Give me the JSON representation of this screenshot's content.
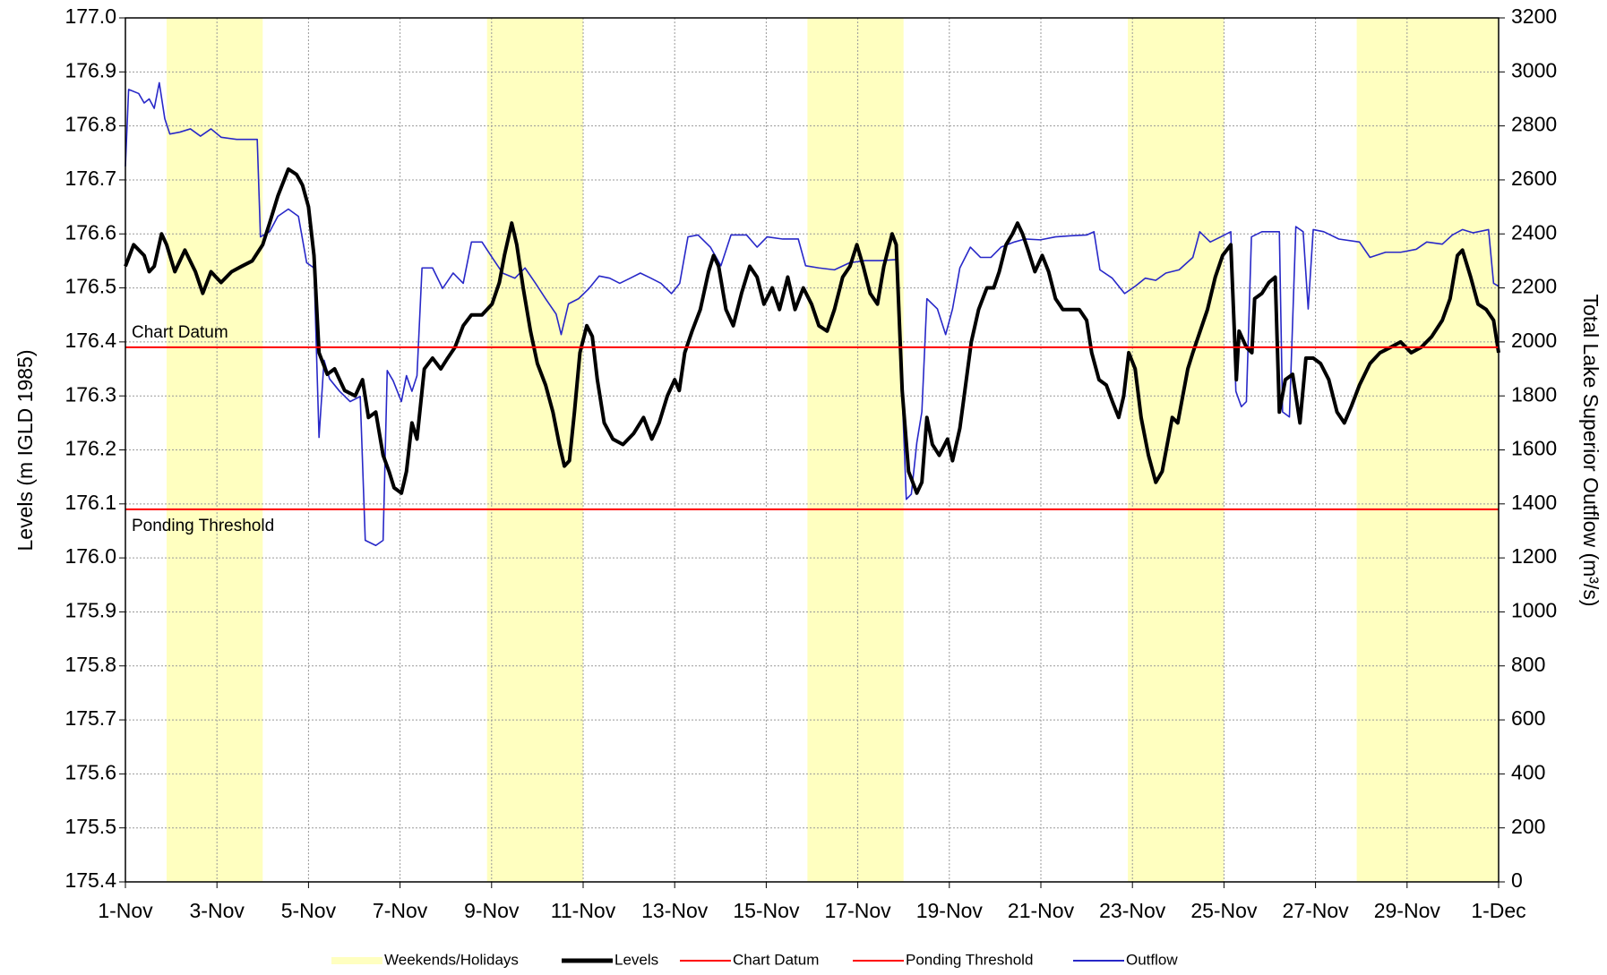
{
  "chart_data": {
    "type": "line",
    "ylabel": "Levels (m IGLD 1985)",
    "y2label": "Total Lake Superior Outflow (m³/s)",
    "xlim": [
      0,
      30
    ],
    "xticks": [
      {
        "value": 0,
        "label": "1-Nov"
      },
      {
        "value": 2,
        "label": "3-Nov"
      },
      {
        "value": 4,
        "label": "5-Nov"
      },
      {
        "value": 6,
        "label": "7-Nov"
      },
      {
        "value": 8,
        "label": "9-Nov"
      },
      {
        "value": 10,
        "label": "11-Nov"
      },
      {
        "value": 12,
        "label": "13-Nov"
      },
      {
        "value": 14,
        "label": "15-Nov"
      },
      {
        "value": 16,
        "label": "17-Nov"
      },
      {
        "value": 18,
        "label": "19-Nov"
      },
      {
        "value": 20,
        "label": "21-Nov"
      },
      {
        "value": 22,
        "label": "23-Nov"
      },
      {
        "value": 24,
        "label": "25-Nov"
      },
      {
        "value": 26,
        "label": "27-Nov"
      },
      {
        "value": 28,
        "label": "29-Nov"
      },
      {
        "value": 30,
        "label": "1-Dec"
      }
    ],
    "ylim": [
      175.4,
      177.0
    ],
    "yticks": [
      {
        "value": 175.4,
        "label": "175.4"
      },
      175.5,
      175.6,
      175.7,
      175.8,
      175.9,
      {
        "value": 176,
        "label": "176.0"
      },
      176.1,
      176.2,
      176.3,
      176.4,
      176.5,
      176.6,
      176.7,
      176.8,
      176.9,
      {
        "value": 177,
        "label": "177.0"
      }
    ],
    "y2lim": [
      0,
      3200
    ],
    "y2ticks": [
      0,
      200,
      400,
      600,
      800,
      1000,
      1200,
      1400,
      1600,
      1800,
      2000,
      2200,
      2400,
      2600,
      2800,
      3000,
      3200
    ],
    "grid": true,
    "legend": "bottom",
    "series": [
      {
        "name": "Weekends/Holidays",
        "color": "#ffffc0",
        "ranges": [
          [
            0.9,
            3.0
          ],
          [
            7.9,
            10.0
          ],
          [
            14.9,
            17.0
          ],
          [
            21.9,
            24.0
          ],
          [
            26.9,
            30.0
          ]
        ]
      },
      {
        "name": "Levels",
        "color": "#000000",
        "axis": "y",
        "x": [
          0,
          0.18,
          0.41,
          0.52,
          0.63,
          0.79,
          0.9,
          1.08,
          1.3,
          1.53,
          1.69,
          1.87,
          2.09,
          2.32,
          2.54,
          2.77,
          3.0,
          3.15,
          3.33,
          3.56,
          3.74,
          3.87,
          4.0,
          4.12,
          4.23,
          4.41,
          4.57,
          4.79,
          5.02,
          5.18,
          5.31,
          5.47,
          5.63,
          5.76,
          5.87,
          6.03,
          6.14,
          6.26,
          6.37,
          6.53,
          6.71,
          6.89,
          7.04,
          7.2,
          7.38,
          7.56,
          7.79,
          8.01,
          8.17,
          8.28,
          8.44,
          8.55,
          8.69,
          8.85,
          9.0,
          9.18,
          9.34,
          9.48,
          9.59,
          9.7,
          9.81,
          9.93,
          10.08,
          10.2,
          10.31,
          10.46,
          10.65,
          10.87,
          11.1,
          11.32,
          11.5,
          11.66,
          11.84,
          12.0,
          12.1,
          12.22,
          12.38,
          12.56,
          12.74,
          12.85,
          12.96,
          13.12,
          13.28,
          13.46,
          13.64,
          13.8,
          13.95,
          14.13,
          14.29,
          14.47,
          14.63,
          14.81,
          14.99,
          15.15,
          15.33,
          15.49,
          15.67,
          15.83,
          15.98,
          16.12,
          16.27,
          16.43,
          16.57,
          16.75,
          16.84,
          16.97,
          17.11,
          17.29,
          17.4,
          17.51,
          17.63,
          17.78,
          17.96,
          18.07,
          18.23,
          18.34,
          18.48,
          18.64,
          18.82,
          18.97,
          19.09,
          19.24,
          19.38,
          19.49,
          19.6,
          19.72,
          19.87,
          20.03,
          20.17,
          20.32,
          20.48,
          20.66,
          20.84,
          21.0,
          21.11,
          21.27,
          21.43,
          21.56,
          21.7,
          21.81,
          21.92,
          22.06,
          22.19,
          22.35,
          22.51,
          22.65,
          22.76,
          22.87,
          22.99,
          23.1,
          23.21,
          23.32,
          23.48,
          23.64,
          23.81,
          23.97,
          24.15,
          24.27,
          24.33,
          24.49,
          24.61,
          24.67,
          24.83,
          24.98,
          25.12,
          25.21,
          25.34,
          25.5,
          25.66,
          25.79,
          25.95,
          26.11,
          26.29,
          26.47,
          26.63,
          26.78,
          26.96,
          27.19,
          27.41,
          27.64,
          27.86,
          28.09,
          28.31,
          28.54,
          28.77,
          28.94,
          29.1,
          29.21,
          29.39,
          29.55,
          29.73,
          29.89,
          30
        ],
        "values": [
          176.54,
          176.58,
          176.56,
          176.53,
          176.54,
          176.6,
          176.58,
          176.53,
          176.57,
          176.53,
          176.49,
          176.53,
          176.51,
          176.53,
          176.54,
          176.55,
          176.58,
          176.62,
          176.67,
          176.72,
          176.71,
          176.69,
          176.65,
          176.56,
          176.38,
          176.34,
          176.35,
          176.31,
          176.3,
          176.33,
          176.26,
          176.27,
          176.19,
          176.16,
          176.13,
          176.12,
          176.16,
          176.25,
          176.22,
          176.35,
          176.37,
          176.35,
          176.37,
          176.39,
          176.43,
          176.45,
          176.45,
          176.47,
          176.51,
          176.56,
          176.62,
          176.58,
          176.5,
          176.42,
          176.36,
          176.32,
          176.27,
          176.21,
          176.17,
          176.18,
          176.27,
          176.38,
          176.43,
          176.41,
          176.33,
          176.25,
          176.22,
          176.21,
          176.23,
          176.26,
          176.22,
          176.25,
          176.3,
          176.33,
          176.31,
          176.38,
          176.42,
          176.46,
          176.53,
          176.56,
          176.54,
          176.46,
          176.43,
          176.49,
          176.54,
          176.52,
          176.47,
          176.5,
          176.46,
          176.52,
          176.46,
          176.5,
          176.47,
          176.43,
          176.42,
          176.46,
          176.52,
          176.54,
          176.58,
          176.54,
          176.49,
          176.47,
          176.54,
          176.6,
          176.58,
          176.31,
          176.16,
          176.12,
          176.14,
          176.26,
          176.21,
          176.19,
          176.22,
          176.18,
          176.24,
          176.31,
          176.4,
          176.46,
          176.5,
          176.5,
          176.53,
          176.58,
          176.6,
          176.62,
          176.6,
          176.57,
          176.53,
          176.56,
          176.53,
          176.48,
          176.46,
          176.46,
          176.46,
          176.44,
          176.38,
          176.33,
          176.32,
          176.29,
          176.26,
          176.3,
          176.38,
          176.35,
          176.26,
          176.19,
          176.14,
          176.16,
          176.21,
          176.26,
          176.25,
          176.3,
          176.35,
          176.38,
          176.42,
          176.46,
          176.52,
          176.56,
          176.58,
          176.33,
          176.42,
          176.39,
          176.38,
          176.48,
          176.49,
          176.51,
          176.52,
          176.27,
          176.33,
          176.34,
          176.25,
          176.37,
          176.37,
          176.36,
          176.33,
          176.27,
          176.25,
          176.28,
          176.32,
          176.36,
          176.38,
          176.39,
          176.4,
          176.38,
          176.39,
          176.41,
          176.44,
          176.48,
          176.56,
          176.57,
          176.52,
          176.47,
          176.46,
          176.44,
          176.38
        ]
      },
      {
        "name": "Chart Datum",
        "color": "#ff0000",
        "value": 176.39
      },
      {
        "name": "Ponding Threshold",
        "color": "#ff0000",
        "value": 176.09
      },
      {
        "name": "Outflow",
        "color": "#2828c8",
        "axis": "y2",
        "x": [
          0,
          0.07,
          0.29,
          0.41,
          0.52,
          0.63,
          0.74,
          0.86,
          0.97,
          1.19,
          1.42,
          1.64,
          1.87,
          2.09,
          2.43,
          2.88,
          2.95,
          3.15,
          3.33,
          3.56,
          3.78,
          3.96,
          4.12,
          4.23,
          4.34,
          4.46,
          4.68,
          4.91,
          5.13,
          5.24,
          5.47,
          5.63,
          5.72,
          5.85,
          6.03,
          6.14,
          6.26,
          6.37,
          6.48,
          6.71,
          6.93,
          7.16,
          7.38,
          7.56,
          7.79,
          8.01,
          8.24,
          8.51,
          8.73,
          8.96,
          9.18,
          9.41,
          9.52,
          9.68,
          9.9,
          10.13,
          10.35,
          10.58,
          10.8,
          11.03,
          11.25,
          11.48,
          11.7,
          11.93,
          12.11,
          12.29,
          12.51,
          12.78,
          13.01,
          13.23,
          13.57,
          13.8,
          14.02,
          14.36,
          14.7,
          14.86,
          15.15,
          15.49,
          15.82,
          16.16,
          16.5,
          16.84,
          16.95,
          17.06,
          17.17,
          17.29,
          17.4,
          17.51,
          17.74,
          17.92,
          18.07,
          18.23,
          18.46,
          18.68,
          18.91,
          19.13,
          19.42,
          19.65,
          19.99,
          20.32,
          20.66,
          21.0,
          21.16,
          21.29,
          21.56,
          21.83,
          22.06,
          22.28,
          22.51,
          22.73,
          23.02,
          23.32,
          23.47,
          23.7,
          23.93,
          24.15,
          24.26,
          24.38,
          24.49,
          24.6,
          24.83,
          25.05,
          25.21,
          25.28,
          25.43,
          25.57,
          25.73,
          25.84,
          25.95,
          26.18,
          26.51,
          26.96,
          27.19,
          27.53,
          27.86,
          28.2,
          28.43,
          28.77,
          28.99,
          29.21,
          29.44,
          29.78,
          29.89,
          30
        ],
        "values": [
          2650,
          2935,
          2920,
          2885,
          2900,
          2865,
          2960,
          2827,
          2770,
          2777,
          2789,
          2762,
          2789,
          2758,
          2750,
          2750,
          2389,
          2408,
          2465,
          2492,
          2465,
          2293,
          2274,
          1646,
          1932,
          1863,
          1817,
          1779,
          1798,
          1265,
          1246,
          1265,
          1894,
          1856,
          1779,
          1875,
          1817,
          1875,
          2274,
          2274,
          2198,
          2255,
          2217,
          2370,
          2370,
          2313,
          2255,
          2236,
          2274,
          2217,
          2160,
          2103,
          2027,
          2141,
          2160,
          2198,
          2244,
          2236,
          2217,
          2236,
          2255,
          2236,
          2217,
          2179,
          2217,
          2389,
          2396,
          2351,
          2282,
          2396,
          2396,
          2351,
          2389,
          2381,
          2381,
          2282,
          2274,
          2267,
          2293,
          2301,
          2301,
          2305,
          1894,
          1417,
          1436,
          1627,
          1741,
          2160,
          2122,
          2027,
          2122,
          2274,
          2351,
          2313,
          2313,
          2351,
          2370,
          2381,
          2378,
          2389,
          2393,
          2396,
          2408,
          2267,
          2236,
          2179,
          2206,
          2236,
          2228,
          2255,
          2267,
          2313,
          2408,
          2370,
          2389,
          2408,
          1817,
          1760,
          1779,
          2389,
          2408,
          2408,
          2408,
          1741,
          1722,
          2427,
          2408,
          2122,
          2416,
          2408,
          2381,
          2370,
          2313,
          2332,
          2332,
          2343,
          2370,
          2362,
          2396,
          2416,
          2404,
          2416,
          2217,
          2206
        ]
      }
    ]
  }
}
